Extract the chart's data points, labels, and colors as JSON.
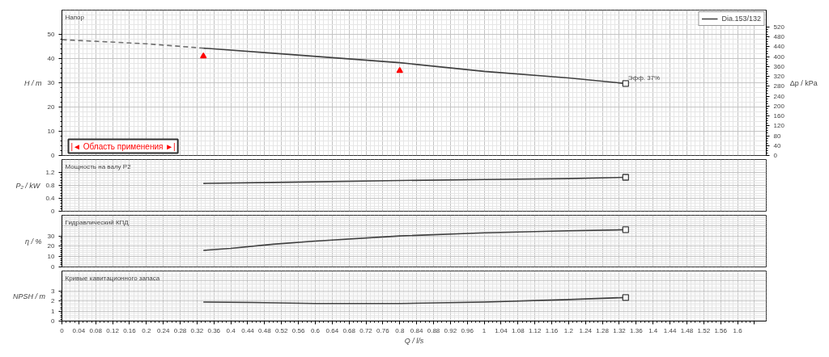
{
  "chart_data": [
    {
      "type": "line",
      "title": "Напор",
      "ylabel": "H / m",
      "y2label": "Δp / kPa",
      "xlim": [
        0,
        1.668
      ],
      "xticks": [
        0,
        0.04,
        0.08,
        0.12,
        0.16,
        0.2,
        0.24,
        0.28,
        0.32,
        0.36,
        0.4,
        0.44,
        0.48,
        0.52,
        0.56,
        0.6,
        0.64,
        0.68,
        0.72,
        0.76,
        0.8,
        0.84,
        0.88,
        0.92,
        0.96,
        1,
        1.04,
        1.08,
        1.12,
        1.16,
        1.2,
        1.24,
        1.28,
        1.32,
        1.36,
        1.4,
        1.44,
        1.48,
        1.52,
        1.56,
        1.6,
        1.64
      ],
      "ylim": [
        0,
        60
      ],
      "yticks": [
        0,
        10,
        20,
        30,
        40,
        50
      ],
      "y2lim": [
        0,
        588
      ],
      "y2ticks": [
        0,
        40,
        80,
        120,
        160,
        200,
        240,
        280,
        320,
        360,
        400,
        440,
        480,
        520
      ],
      "grid": true,
      "legend": "top right",
      "tick_labels": "y",
      "series": [
        {
          "name": "Dia.153/132",
          "color": "#404040",
          "x": [
            0.335,
            0.5,
            0.8,
            1.0,
            1.2,
            1.335
          ],
          "values": [
            44.3,
            42.2,
            38.3,
            34.7,
            32.0,
            29.7
          ]
        },
        {
          "color": "#707070",
          "line_style": "dashed",
          "x": [
            0,
            0.2,
            0.335
          ],
          "values": [
            47.8,
            46.1,
            44.3
          ]
        },
        {
          "type": "scatter",
          "marker": "triangle",
          "color": "#ff0000",
          "x": [
            0.335,
            0.8
          ],
          "values": [
            41,
            35
          ]
        },
        {
          "type": "scatter",
          "marker": "square",
          "color": "#404040",
          "x": [
            1.335
          ],
          "values": [
            29.7
          ]
        }
      ],
      "annotations": [
        {
          "text": "Эфф. 37%",
          "x": 1.335,
          "y": 29.7
        },
        "|◄ Область применения ►|"
      ]
    },
    {
      "type": "line",
      "title": "Мощность на валу P2",
      "ylabel": "P₂ / kW",
      "xlim": [
        0,
        1.668
      ],
      "xticks": [
        0,
        0.04,
        0.08,
        0.12,
        0.16,
        0.2,
        0.24,
        0.28,
        0.32,
        0.36,
        0.4,
        0.44,
        0.48,
        0.52,
        0.56,
        0.6,
        0.64,
        0.68,
        0.72,
        0.76,
        0.8,
        0.84,
        0.88,
        0.92,
        0.96,
        1,
        1.04,
        1.08,
        1.12,
        1.16,
        1.2,
        1.24,
        1.28,
        1.32,
        1.36,
        1.4,
        1.44,
        1.48,
        1.52,
        1.56,
        1.6,
        1.64
      ],
      "ylim": [
        0,
        1.6
      ],
      "yticks": [
        0,
        0.4,
        0.8,
        1.2
      ],
      "grid": true,
      "tick_labels": "y",
      "series": [
        {
          "color": "#404040",
          "x": [
            0.335,
            0.5,
            0.8,
            1.0,
            1.2,
            1.335
          ],
          "values": [
            0.86,
            0.89,
            0.95,
            0.98,
            1.01,
            1.05
          ]
        },
        {
          "type": "scatter",
          "marker": "square",
          "color": "#404040",
          "x": [
            1.335
          ],
          "values": [
            1.05
          ]
        }
      ]
    },
    {
      "type": "line",
      "title": "Гидравлический КПД",
      "ylabel": "η / %",
      "xlim": [
        0,
        1.668
      ],
      "xticks": [
        0,
        0.04,
        0.08,
        0.12,
        0.16,
        0.2,
        0.24,
        0.28,
        0.32,
        0.36,
        0.4,
        0.44,
        0.48,
        0.52,
        0.56,
        0.6,
        0.64,
        0.68,
        0.72,
        0.76,
        0.8,
        0.84,
        0.88,
        0.92,
        0.96,
        1,
        1.04,
        1.08,
        1.12,
        1.16,
        1.2,
        1.24,
        1.28,
        1.32,
        1.36,
        1.4,
        1.44,
        1.48,
        1.52,
        1.56,
        1.6,
        1.64
      ],
      "ylim": [
        0,
        50
      ],
      "yticks": [
        0,
        10,
        20,
        30
      ],
      "grid": true,
      "tick_labels": "y",
      "series": [
        {
          "color": "#404040",
          "x": [
            0.335,
            0.4,
            0.5,
            0.6,
            0.8,
            1.0,
            1.2,
            1.335
          ],
          "values": [
            16,
            18,
            22,
            25,
            30,
            33,
            35,
            36
          ]
        },
        {
          "type": "scatter",
          "marker": "square",
          "color": "#404040",
          "x": [
            1.335
          ],
          "values": [
            36
          ]
        }
      ]
    },
    {
      "type": "line",
      "title": "Кривые кавитационного запаса",
      "ylabel": "NPSH / m",
      "xlabel": "Q / l/s",
      "xlim": [
        0,
        1.668
      ],
      "xticks": [
        0,
        0.04,
        0.08,
        0.12,
        0.16,
        0.2,
        0.24,
        0.28,
        0.32,
        0.36,
        0.4,
        0.44,
        0.48,
        0.52,
        0.56,
        0.6,
        0.64,
        0.68,
        0.72,
        0.76,
        0.8,
        0.84,
        0.88,
        0.92,
        0.96,
        1,
        1.04,
        1.08,
        1.12,
        1.16,
        1.2,
        1.24,
        1.28,
        1.32,
        1.36,
        1.4,
        1.44,
        1.48,
        1.52,
        1.56,
        1.6,
        {
          "value": 1.64,
          "label": null
        }
      ],
      "ylim": [
        0,
        5
      ],
      "yticks": [
        0,
        1,
        2,
        3
      ],
      "grid": true,
      "series": [
        {
          "color": "#404040",
          "x": [
            0.335,
            0.45,
            0.6,
            0.8,
            1.0,
            1.2,
            1.335
          ],
          "values": [
            1.9,
            1.85,
            1.75,
            1.75,
            1.9,
            2.15,
            2.35
          ]
        },
        {
          "type": "scatter",
          "marker": "square",
          "color": "#404040",
          "x": [
            1.335
          ],
          "values": [
            2.35
          ]
        }
      ]
    }
  ]
}
